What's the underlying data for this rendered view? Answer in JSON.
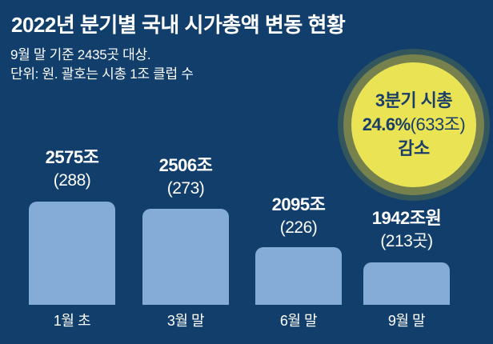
{
  "header": {
    "title": "2022년 분기별 국내 시가총액 변동 현황",
    "subtitle_line1": "9월 말 기준 2435곳 대상.",
    "subtitle_line2": "단위: 원. 괄호는 시총 1조 클럽 수"
  },
  "badge": {
    "line1": "3분기 시총",
    "line2_bold": "24.6%",
    "line2_light": "(633조)",
    "line3": "감소"
  },
  "chart_data": {
    "type": "bar",
    "title": "2022년 분기별 국내 시가총액 변동 현황",
    "categories": [
      "1월 초",
      "3월 말",
      "6월 말",
      "9월 말"
    ],
    "values": [
      2575,
      2506,
      2095,
      1942
    ],
    "unit": "조 원",
    "value_labels": [
      "2575조",
      "2506조",
      "2095조",
      "1942조원"
    ],
    "club_counts": [
      288,
      273,
      226,
      213
    ],
    "club_labels": [
      "(288)",
      "(273)",
      "(226)",
      "(213곳)"
    ],
    "annotation": "3분기 시총 24.6%(633조) 감소",
    "legend": "none",
    "grid": false,
    "baseline_truncated": true
  },
  "colors": {
    "background": "#113e6b",
    "bar_fill": "#85abd7",
    "text": "#ffffff",
    "badge_fill": "#eae455",
    "badge_ring_inner": "#76814e",
    "badge_ring_outer": "#33565c",
    "badge_text": "#1b3e68"
  }
}
